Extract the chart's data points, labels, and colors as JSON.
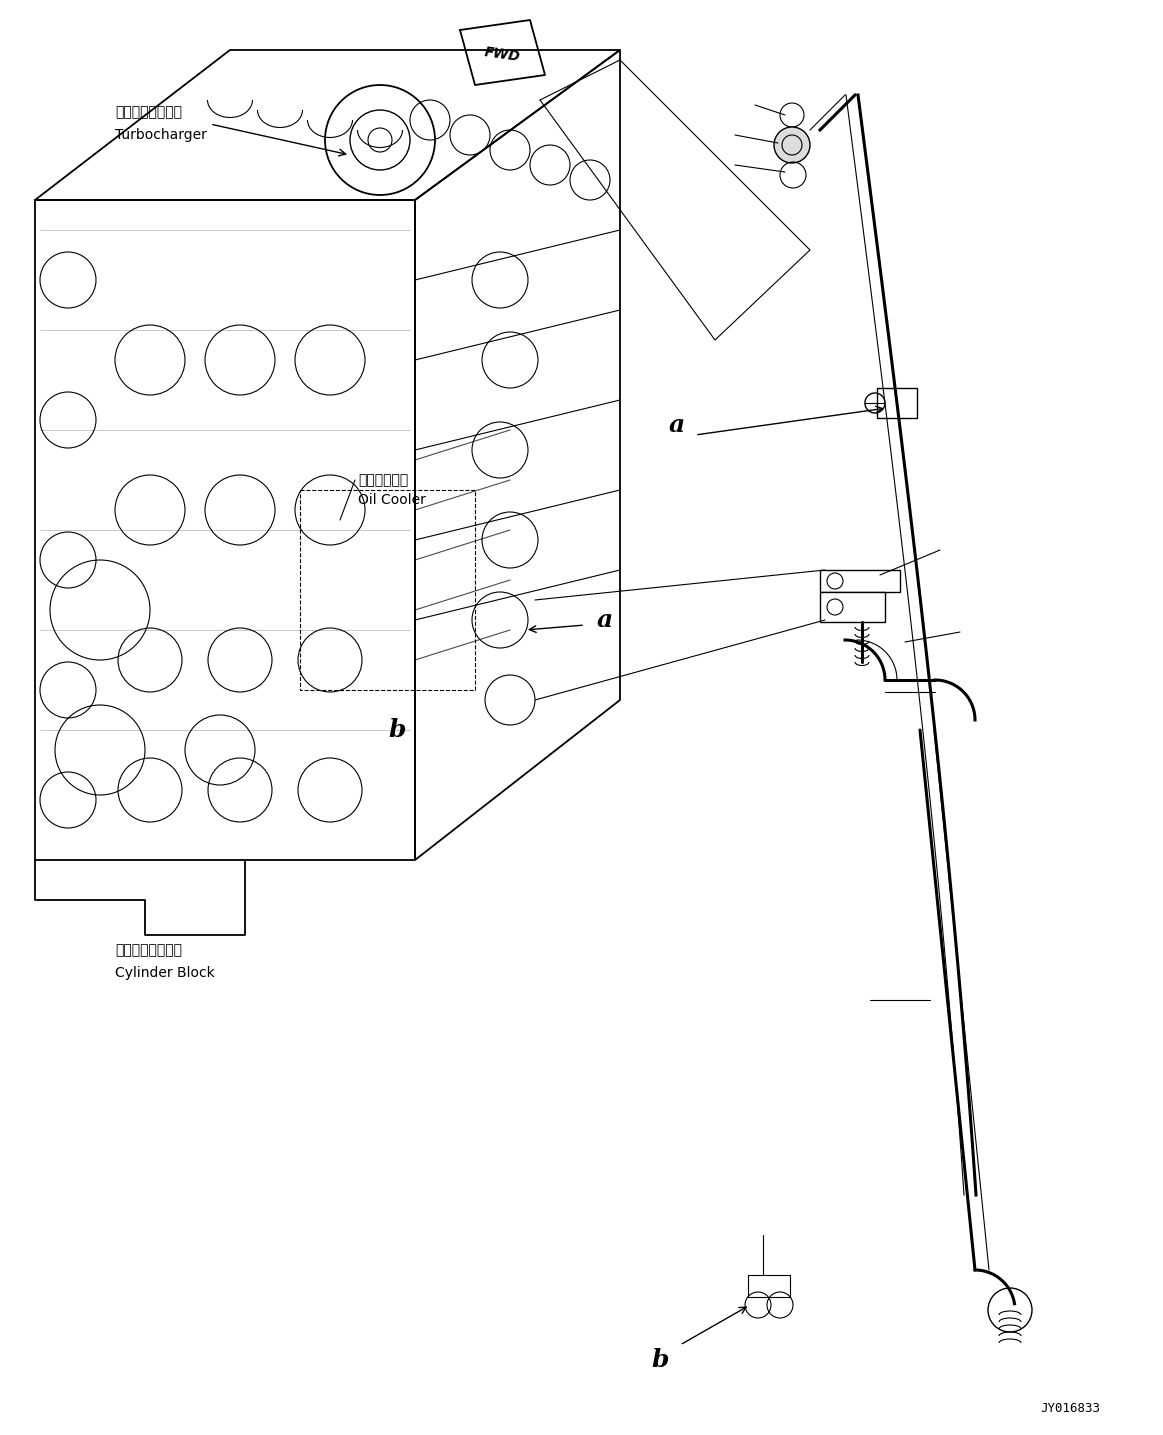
{
  "background_color": "#ffffff",
  "line_color": "#000000",
  "fig_width": 11.63,
  "fig_height": 14.35,
  "dpi": 100,
  "labels": {
    "turbocharger_jp": "ターボチャージャ",
    "turbocharger_en": "Turbocharger",
    "oil_cooler_jp": "オイルクーラ",
    "oil_cooler_en": "Oil Cooler",
    "cylinder_block_jp": "シリンダブロック",
    "cylinder_block_en": "Cylinder Block",
    "fwd": "FWD",
    "part_id": "JY016833",
    "label_a": "a",
    "label_b": "b"
  }
}
